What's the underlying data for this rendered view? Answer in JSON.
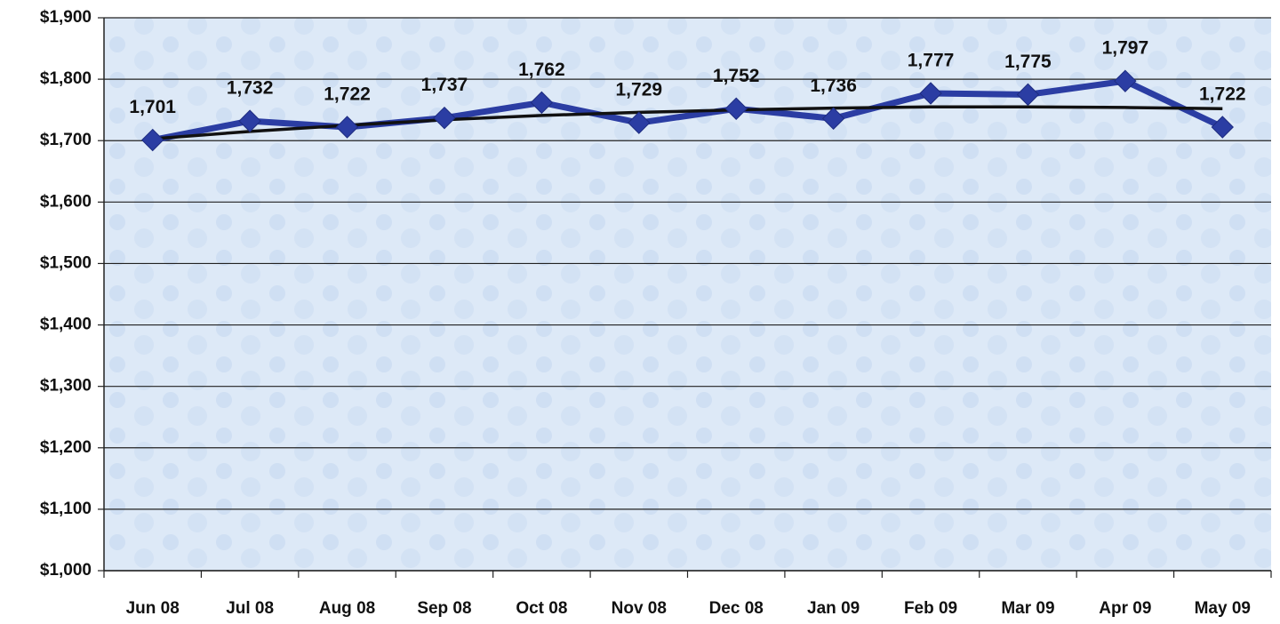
{
  "chart_data": {
    "type": "line",
    "categories": [
      "Jun 08",
      "Jul 08",
      "Aug 08",
      "Sep 08",
      "Oct 08",
      "Nov 08",
      "Dec 08",
      "Jan 09",
      "Feb 09",
      "Mar 09",
      "Apr 09",
      "May 09"
    ],
    "series": [
      {
        "color": "#2b3da3",
        "values": [
          1701,
          1732,
          1722,
          1737,
          1762,
          1729,
          1752,
          1736,
          1777,
          1775,
          1797,
          1722
        ],
        "value_labels": [
          "1,701",
          "1,732",
          "1,722",
          "1,737",
          "1,762",
          "1,729",
          "1,752",
          "1,736",
          "1,777",
          "1,775",
          "1,797",
          "1,722"
        ]
      }
    ],
    "trend": {
      "color": "#111111",
      "values": [
        1703,
        1715,
        1725,
        1734,
        1741,
        1746,
        1750,
        1753,
        1755,
        1755,
        1754,
        1752
      ]
    },
    "ylim": [
      1000,
      1900
    ],
    "yticks": [
      {
        "value": 1000,
        "label": "$1,000"
      },
      {
        "value": 1100,
        "label": "$1,100"
      },
      {
        "value": 1200,
        "label": "$1,200"
      },
      {
        "value": 1300,
        "label": "$1,300"
      },
      {
        "value": 1400,
        "label": "$1,400"
      },
      {
        "value": 1500,
        "label": "$1,500"
      },
      {
        "value": 1600,
        "label": "$1,600"
      },
      {
        "value": 1700,
        "label": "$1,700"
      },
      {
        "value": 1800,
        "label": "$1,800"
      },
      {
        "value": 1900,
        "label": "$1,900"
      }
    ],
    "grid": true
  }
}
